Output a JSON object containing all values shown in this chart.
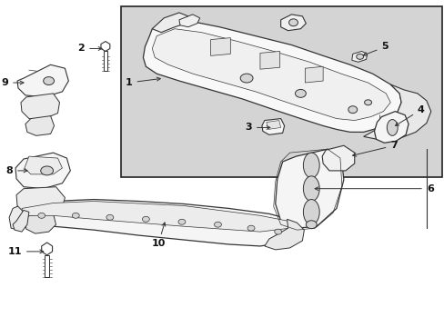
{
  "bg_color": "#ffffff",
  "inset_bg": "#d4d4d4",
  "border_color": "#333333",
  "part_outline": "#333333",
  "part_fill": "#ffffff",
  "label_fontsize": 8,
  "label_fontweight": "bold",
  "arrow_lw": 0.7,
  "parts_lw": 0.7
}
